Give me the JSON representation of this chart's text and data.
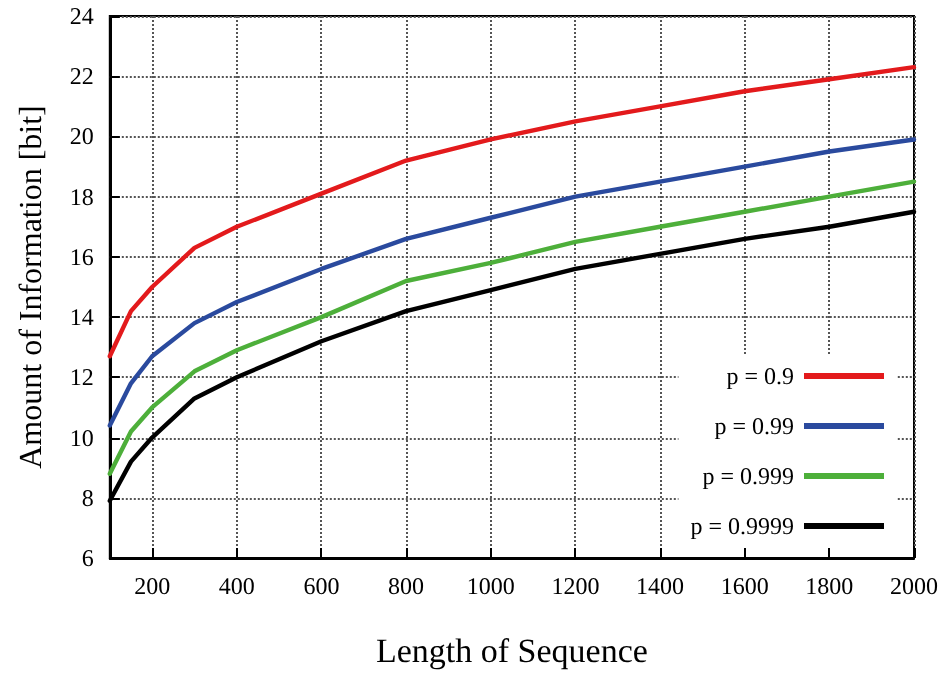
{
  "chart_data": {
    "type": "line",
    "xlabel": "Length of Sequence",
    "ylabel": "Amount of Information [bit]",
    "xlim": [
      100,
      2000
    ],
    "xticks": [
      200,
      400,
      600,
      800,
      1000,
      1200,
      1400,
      1600,
      1800,
      2000
    ],
    "ylim": [
      6,
      24
    ],
    "yticks": [
      6,
      8,
      10,
      12,
      14,
      16,
      18,
      20,
      22,
      24
    ],
    "x": [
      100,
      150,
      200,
      300,
      400,
      600,
      800,
      1000,
      1200,
      1400,
      1600,
      1800,
      2000
    ],
    "series": [
      {
        "name": "p = 0.9",
        "color": "#e31a1c",
        "values": [
          12.7,
          14.2,
          15.0,
          16.3,
          17.0,
          18.1,
          19.2,
          19.9,
          20.5,
          21.0,
          21.5,
          21.9,
          22.3
        ]
      },
      {
        "name": "p = 0.99",
        "color": "#2a4a9e",
        "values": [
          10.4,
          11.8,
          12.7,
          13.8,
          14.5,
          15.6,
          16.6,
          17.3,
          18.0,
          18.5,
          19.0,
          19.5,
          19.9
        ]
      },
      {
        "name": "p = 0.999",
        "color": "#4daf3a",
        "values": [
          8.8,
          10.2,
          11.0,
          12.2,
          12.9,
          14.0,
          15.2,
          15.8,
          16.5,
          17.0,
          17.5,
          18.0,
          18.5
        ]
      },
      {
        "name": "p = 0.9999",
        "color": "#000000",
        "values": [
          7.9,
          9.2,
          10.0,
          11.3,
          12.0,
          13.2,
          14.2,
          14.9,
          15.6,
          16.1,
          16.6,
          17.0,
          17.5
        ]
      }
    ],
    "grid": true,
    "legend": "bottom right",
    "marker": "none",
    "line_style": "solid"
  }
}
